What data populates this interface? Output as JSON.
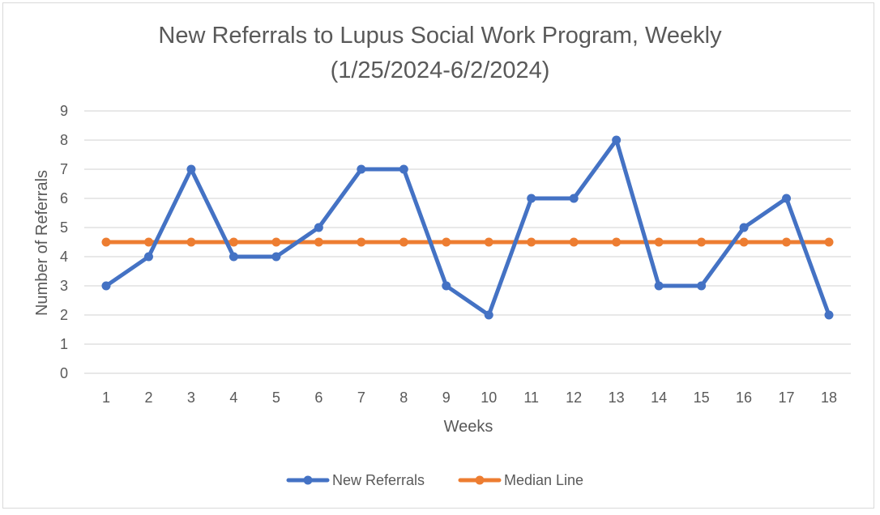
{
  "chart_data": {
    "type": "line",
    "title_line1": "New Referrals to Lupus Social Work Program, Weekly",
    "title_line2": "(1/25/2024-6/2/2024)",
    "xlabel": "Weeks",
    "ylabel": "Number of Referrals",
    "categories": [
      "1",
      "2",
      "3",
      "4",
      "5",
      "6",
      "7",
      "8",
      "9",
      "10",
      "11",
      "12",
      "13",
      "14",
      "15",
      "16",
      "17",
      "18"
    ],
    "y_ticks": [
      "0",
      "1",
      "2",
      "3",
      "4",
      "5",
      "6",
      "7",
      "8",
      "9"
    ],
    "ylim": [
      0,
      9
    ],
    "grid": true,
    "legend_position": "bottom",
    "series": [
      {
        "name": "New Referrals",
        "color": "#4472c4",
        "values": [
          3,
          4,
          7,
          4,
          4,
          5,
          7,
          7,
          3,
          2,
          6,
          6,
          8,
          3,
          3,
          5,
          6,
          2
        ]
      },
      {
        "name": "Median Line",
        "color": "#ed7d31",
        "values": [
          4.5,
          4.5,
          4.5,
          4.5,
          4.5,
          4.5,
          4.5,
          4.5,
          4.5,
          4.5,
          4.5,
          4.5,
          4.5,
          4.5,
          4.5,
          4.5,
          4.5,
          4.5
        ]
      }
    ]
  }
}
